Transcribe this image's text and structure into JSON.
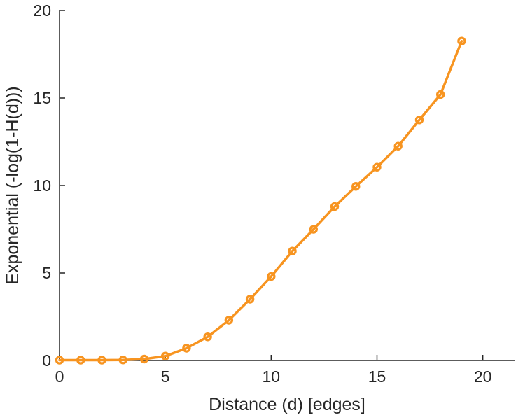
{
  "chart_data": {
    "type": "line",
    "x": [
      0,
      1,
      2,
      3,
      4,
      5,
      6,
      7,
      8,
      9,
      10,
      11,
      12,
      13,
      14,
      15,
      16,
      17,
      18,
      19
    ],
    "y": [
      0.02,
      0.02,
      0.02,
      0.03,
      0.08,
      0.25,
      0.7,
      1.35,
      2.3,
      3.5,
      4.8,
      6.25,
      7.5,
      8.8,
      9.95,
      11.05,
      12.25,
      13.75,
      15.2,
      18.25
    ],
    "title": "",
    "xlabel": "Distance (d) [edges]",
    "ylabel": "Exponential (-log(1-H(d)))",
    "xticks": [
      0,
      5,
      10,
      15,
      20
    ],
    "yticks": [
      0,
      5,
      10,
      15,
      20
    ],
    "xtick_labels": [
      "0",
      "5",
      "10",
      "15",
      "20"
    ],
    "ytick_labels": [
      "0",
      "5",
      "10",
      "15",
      "20"
    ],
    "xlim": [
      0,
      21.5
    ],
    "ylim": [
      0,
      20
    ],
    "grid": false,
    "legend": null,
    "line_color": "#F79420",
    "axis_color": "#262626",
    "marker": "open-circle",
    "line_width": 3.5
  }
}
